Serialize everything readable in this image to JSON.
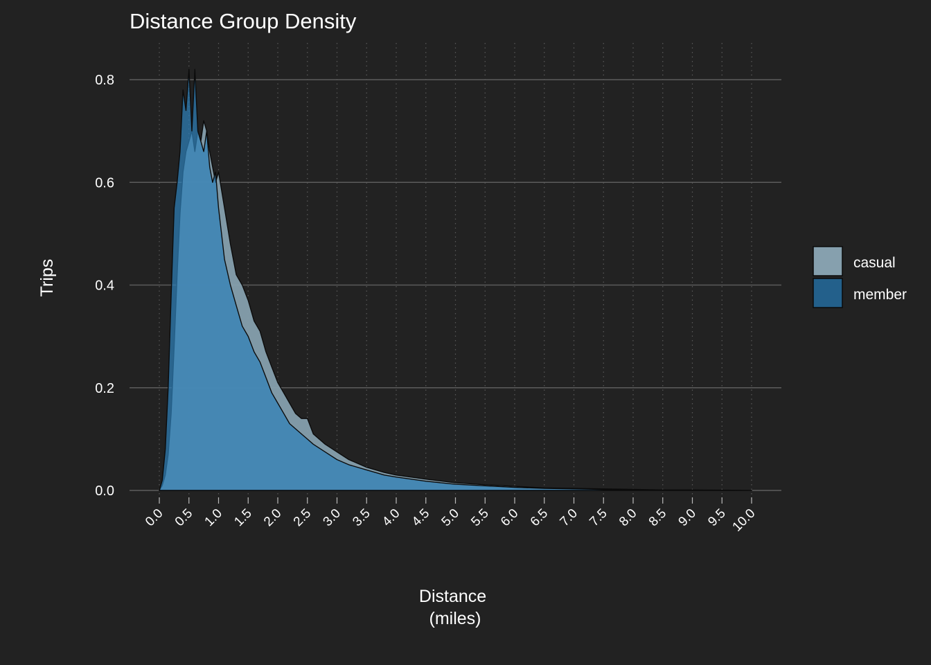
{
  "chart_data": {
    "type": "area",
    "title": "Distance Group Density",
    "xlabel_lines": [
      "Distance",
      "(miles)"
    ],
    "ylabel": "Trips",
    "xlim": [
      0,
      10
    ],
    "ylim": [
      0,
      0.8
    ],
    "x_ticks": [
      "0.0",
      "0.5",
      "1.0",
      "1.5",
      "2.0",
      "2.5",
      "3.0",
      "3.5",
      "4.0",
      "4.5",
      "5.0",
      "5.5",
      "6.0",
      "6.5",
      "7.0",
      "7.5",
      "8.0",
      "8.5",
      "9.0",
      "9.5",
      "10.0"
    ],
    "y_ticks": [
      "0.0",
      "0.2",
      "0.4",
      "0.6",
      "0.8"
    ],
    "legend_position": "right",
    "grid": true,
    "background_color": "#222222",
    "series": [
      {
        "name": "casual",
        "color": "#86a0ae",
        "x": [
          0.0,
          0.05,
          0.1,
          0.15,
          0.2,
          0.25,
          0.3,
          0.35,
          0.4,
          0.45,
          0.5,
          0.55,
          0.6,
          0.65,
          0.7,
          0.75,
          0.8,
          0.85,
          0.9,
          0.95,
          1.0,
          1.1,
          1.2,
          1.3,
          1.4,
          1.5,
          1.6,
          1.7,
          1.8,
          1.9,
          2.0,
          2.1,
          2.2,
          2.3,
          2.4,
          2.5,
          2.6,
          2.8,
          3.0,
          3.2,
          3.5,
          3.8,
          4.0,
          4.5,
          5.0,
          5.5,
          6.0,
          6.5,
          7.0,
          7.5,
          8.0,
          8.5,
          9.0,
          9.5,
          10.0
        ],
        "y": [
          0.0,
          0.01,
          0.03,
          0.07,
          0.15,
          0.28,
          0.42,
          0.54,
          0.62,
          0.66,
          0.68,
          0.7,
          0.66,
          0.7,
          0.68,
          0.72,
          0.7,
          0.66,
          0.63,
          0.6,
          0.62,
          0.55,
          0.48,
          0.42,
          0.4,
          0.37,
          0.33,
          0.31,
          0.27,
          0.24,
          0.21,
          0.19,
          0.17,
          0.15,
          0.14,
          0.14,
          0.11,
          0.09,
          0.075,
          0.06,
          0.045,
          0.035,
          0.03,
          0.022,
          0.015,
          0.011,
          0.008,
          0.005,
          0.004,
          0.003,
          0.002,
          0.001,
          0.001,
          0.0005,
          0.0
        ]
      },
      {
        "name": "member",
        "color": "#235f8a",
        "x": [
          0.0,
          0.05,
          0.1,
          0.15,
          0.2,
          0.25,
          0.3,
          0.35,
          0.4,
          0.45,
          0.5,
          0.55,
          0.6,
          0.65,
          0.7,
          0.75,
          0.8,
          0.85,
          0.9,
          0.95,
          1.0,
          1.1,
          1.2,
          1.3,
          1.4,
          1.5,
          1.6,
          1.7,
          1.8,
          1.9,
          2.0,
          2.1,
          2.2,
          2.3,
          2.4,
          2.5,
          2.6,
          2.8,
          3.0,
          3.2,
          3.5,
          3.8,
          4.0,
          4.5,
          5.0,
          5.5,
          6.0,
          6.5,
          7.0,
          7.5,
          8.0,
          8.5,
          9.0,
          9.5,
          10.0
        ],
        "y": [
          0.0,
          0.02,
          0.08,
          0.2,
          0.38,
          0.55,
          0.6,
          0.66,
          0.78,
          0.74,
          0.82,
          0.7,
          0.82,
          0.7,
          0.68,
          0.66,
          0.7,
          0.63,
          0.6,
          0.62,
          0.55,
          0.45,
          0.4,
          0.36,
          0.32,
          0.3,
          0.27,
          0.25,
          0.22,
          0.19,
          0.17,
          0.15,
          0.13,
          0.12,
          0.11,
          0.1,
          0.09,
          0.075,
          0.06,
          0.05,
          0.04,
          0.03,
          0.026,
          0.018,
          0.012,
          0.009,
          0.006,
          0.004,
          0.003,
          0.002,
          0.001,
          0.001,
          0.0005,
          0.0003,
          0.0
        ]
      }
    ]
  }
}
